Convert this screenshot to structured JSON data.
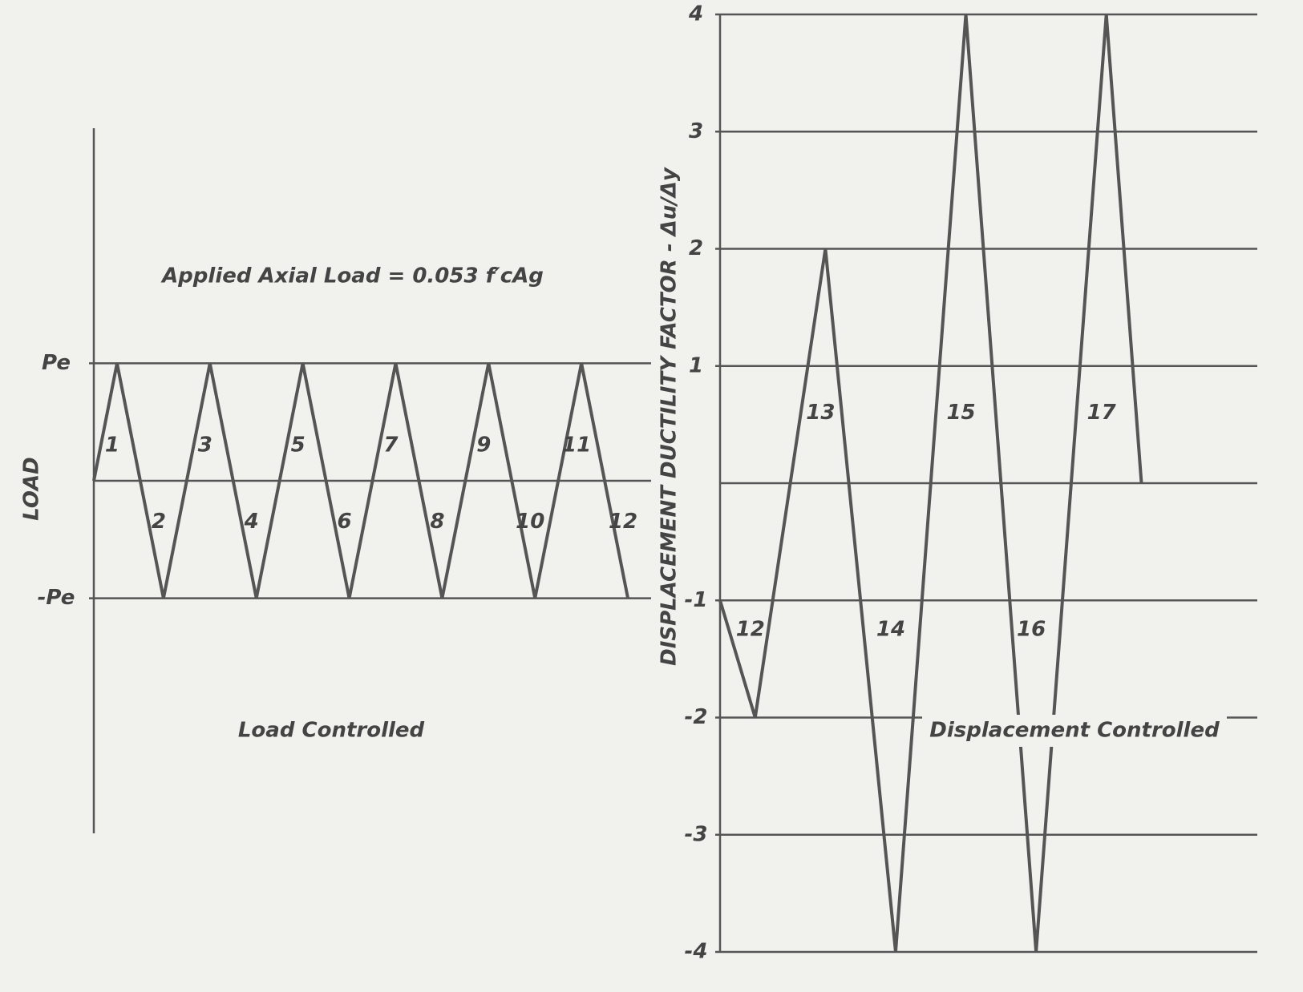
{
  "chart_data": [
    {
      "type": "line",
      "annotations": [
        "Applied Axial Load = 0.053 f′cAg",
        "Load Controlled"
      ],
      "y_label": "LOAD",
      "x": [
        0,
        1,
        3,
        5,
        7,
        9,
        11,
        13,
        15,
        17,
        19,
        21,
        23
      ],
      "series": [
        {
          "color": "#555555",
          "values": [
            0,
            1,
            -1,
            1,
            -1,
            1,
            -1,
            1,
            -1,
            1,
            -1,
            1,
            -1
          ]
        }
      ],
      "cycle_labels": [
        "1",
        "2",
        "3",
        "4",
        "5",
        "6",
        "7",
        "8",
        "9",
        "10",
        "11",
        "12"
      ],
      "xlim": [
        0,
        24
      ],
      "ylim": [
        -3,
        3
      ],
      "yticks": [
        {
          "value": 1,
          "label": "Pe"
        },
        {
          "value": -1,
          "label": "-Pe"
        }
      ],
      "grid": true
    },
    {
      "type": "line",
      "annotations": [
        "Displacement Controlled"
      ],
      "y_label": "DISPLACEMENT DUCTILITY FACTOR - Δu/Δy",
      "x": [
        0,
        1,
        3,
        5,
        7,
        9,
        11,
        12
      ],
      "series": [
        {
          "color": "#555555",
          "values": [
            -1,
            -2,
            2,
            -4,
            4,
            -4,
            4,
            0
          ]
        }
      ],
      "cycle_labels": [
        "12",
        "13",
        "14",
        "15",
        "16",
        "17"
      ],
      "xlim": [
        0,
        15.3
      ],
      "ylim": [
        -4,
        4
      ],
      "yticks": [
        4,
        3,
        2,
        1,
        -1,
        -2,
        -3,
        -4
      ],
      "grid": true
    }
  ]
}
